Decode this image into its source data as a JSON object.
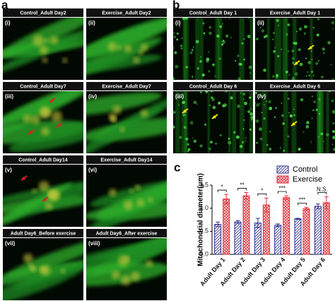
{
  "panels": [
    {
      "label": "a",
      "images": [
        {
          "tag": "(i)",
          "title": "Control_Adult Day2"
        },
        {
          "tag": "(ii)",
          "title": "Exercise_Adult Day2"
        },
        {
          "tag": "(iii)",
          "title": "Control_Adult Day7"
        },
        {
          "tag": "(iv)",
          "title": "Exercise_Adult Day7"
        },
        {
          "tag": "(v)",
          "title": "Control_Adult Day14"
        },
        {
          "tag": "(vi)",
          "title": "Exercise_Adult Day14"
        },
        {
          "tag": "(vii)",
          "title": "Adult Day6_Before exercise"
        },
        {
          "tag": "(viii)",
          "title": "Adult Day6_After exercise"
        }
      ]
    },
    {
      "label": "b",
      "images": [
        {
          "tag": "(i)",
          "title": "Control_Adult Day 1"
        },
        {
          "tag": "(ii)",
          "title": "Exercise_Adult Day 1"
        },
        {
          "tag": "(iii)",
          "title": "Control_Adult Day 6"
        },
        {
          "tag": "(iv)",
          "title": "Exercise_Adult Day 6"
        }
      ]
    }
  ],
  "chart_data": {
    "type": "bar",
    "label": "c",
    "y_label": "Mitochondrial diameter(μm)",
    "categories": [
      "Adult Day 1",
      "Adult Day 2",
      "Adult Day 3",
      "Adult Day 4",
      "Adult Day 5",
      "Adult Day 6"
    ],
    "series": [
      {
        "name": "Control",
        "color": "#2b2b8c",
        "values": [
          0.65,
          0.7,
          0.68,
          0.63,
          0.77,
          1.04
        ],
        "errors": [
          0.05,
          0.03,
          0.1,
          0.03,
          0.01,
          0.05
        ]
      },
      {
        "name": "Exercise",
        "color": "#e0303c",
        "values": [
          1.2,
          1.27,
          1.07,
          1.23,
          0.99,
          1.12
        ],
        "errors": [
          0.1,
          0.07,
          0.15,
          0.04,
          0.03,
          0.13
        ]
      }
    ],
    "annotations": [
      "*",
      "**",
      "*",
      "***",
      "***",
      "N.S."
    ],
    "ylim": [
      0,
      1.5
    ],
    "yticks": [
      {
        "value": 0,
        "label": "0.0"
      },
      0.5,
      {
        "value": 1,
        "label": "1.0"
      },
      1.5
    ],
    "legend": "upper right"
  }
}
